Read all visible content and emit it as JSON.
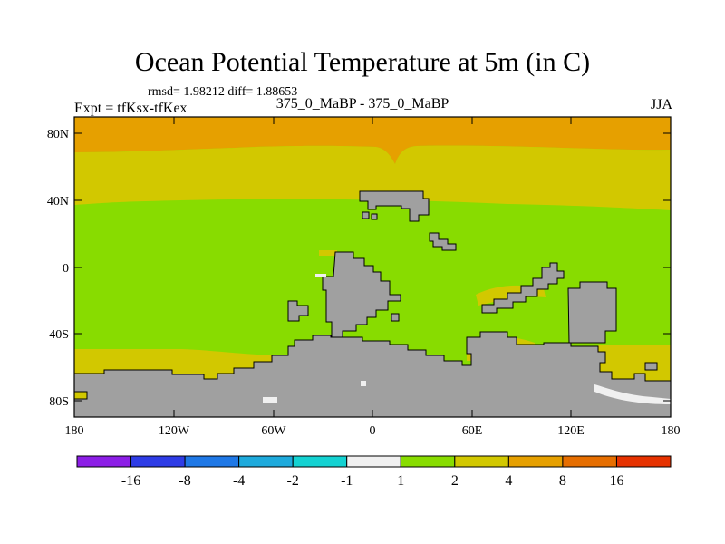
{
  "title": "Ocean Potential Temperature at 5m (in C)",
  "stats": "rmsd= 1.98212 diff= 1.88653",
  "experiment": "Expt = tfKsx-tfKex",
  "comparison": "375_0_MaBP - 375_0_MaBP",
  "season": "JJA",
  "lat_labels": [
    "80N",
    "40N",
    "0",
    "40S",
    "80S"
  ],
  "lon_labels": [
    "180",
    "120W",
    "60W",
    "0",
    "60E",
    "120E",
    "180"
  ],
  "colorbar": {
    "colors": [
      "#8c1ee6",
      "#2e3ce6",
      "#1f78e6",
      "#1eaadc",
      "#14d2d2",
      "#f0f0f0",
      "#88dc00",
      "#d2c800",
      "#e6a000",
      "#e66e00",
      "#e63200"
    ],
    "labels": [
      "-16",
      "-8",
      "-4",
      "-2",
      "-1",
      "1",
      "2",
      "4",
      "8",
      "16"
    ]
  },
  "map_colors": {
    "land": "#a0a0a0",
    "band_1_2": "#88dc00",
    "band_2_4": "#d2c800",
    "band_4_8": "#e6a000",
    "band_neg1_1": "#f0f0f0"
  }
}
